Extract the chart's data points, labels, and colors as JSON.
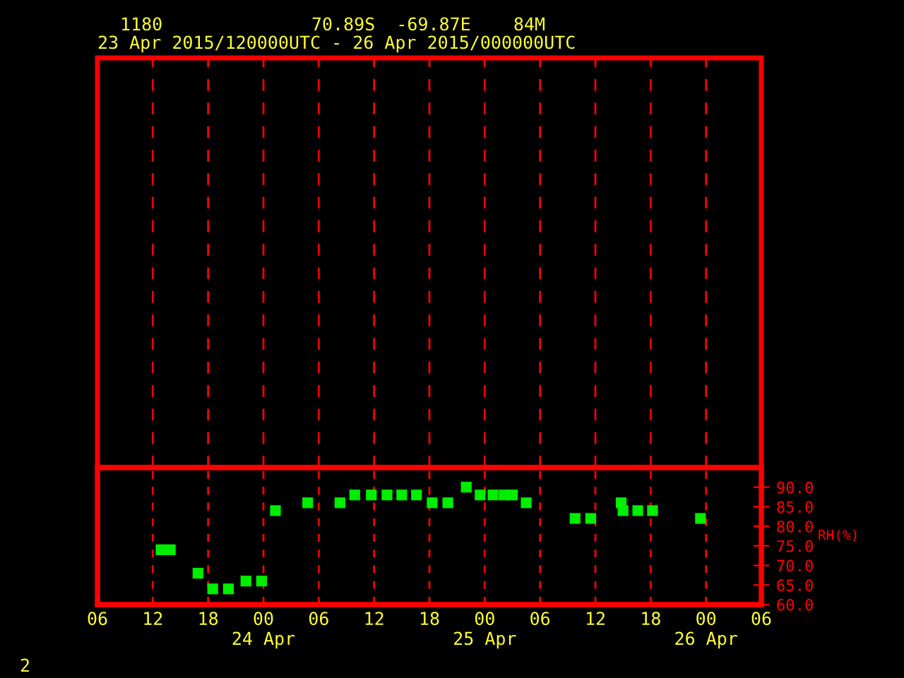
{
  "chart_data": {
    "type": "scatter",
    "title": "1180              70.89S  -69.87E    84M",
    "subtitle": "23 Apr 2015/120000UTC - 26 Apr 2015/000000UTC",
    "y2label": "RH(%)",
    "annotations": [
      "2"
    ],
    "x": [
      "2015-04-23T12:54",
      "2015-04-23T13:54",
      "2015-04-23T16:54",
      "2015-04-23T18:30",
      "2015-04-23T20:12",
      "2015-04-23T22:06",
      "2015-04-23T23:48",
      "2015-04-24T01:18",
      "2015-04-24T04:48",
      "2015-04-24T08:18",
      "2015-04-24T09:54",
      "2015-04-24T11:42",
      "2015-04-24T13:24",
      "2015-04-24T15:00",
      "2015-04-24T16:36",
      "2015-04-24T18:18",
      "2015-04-24T20:00",
      "2015-04-24T22:00",
      "2015-04-24T23:30",
      "2015-04-25T00:54",
      "2015-04-25T02:06",
      "2015-04-25T03:00",
      "2015-04-25T04:30",
      "2015-04-25T09:48",
      "2015-04-25T11:30",
      "2015-04-25T14:48",
      "2015-04-25T15:00",
      "2015-04-25T16:36",
      "2015-04-25T18:12",
      "2015-04-25T23:24"
    ],
    "series": [
      {
        "color": "#00ee00",
        "axis": "y2",
        "values": [
          74,
          74,
          68,
          64,
          64,
          66,
          66,
          84,
          86,
          86,
          88,
          88,
          88,
          88,
          88,
          86,
          86,
          90,
          88,
          88,
          88,
          88,
          86,
          82,
          82,
          86,
          84,
          84,
          84,
          82
        ]
      }
    ],
    "xlim": [
      "2015-04-23T06:00",
      "2015-04-26T06:00"
    ],
    "xticks": [
      {
        "value": "2015-04-23T06:00",
        "label": "06"
      },
      {
        "value": "2015-04-23T12:00",
        "label": "12"
      },
      {
        "value": "2015-04-23T18:00",
        "label": "18"
      },
      {
        "value": "2015-04-24T00:00",
        "label": "00\n24 Apr"
      },
      {
        "value": "2015-04-24T06:00",
        "label": "06"
      },
      {
        "value": "2015-04-24T12:00",
        "label": "12"
      },
      {
        "value": "2015-04-24T18:00",
        "label": "18"
      },
      {
        "value": "2015-04-25T00:00",
        "label": "00\n25 Apr"
      },
      {
        "value": "2015-04-25T06:00",
        "label": "06"
      },
      {
        "value": "2015-04-25T12:00",
        "label": "12"
      },
      {
        "value": "2015-04-25T18:00",
        "label": "18"
      },
      {
        "value": "2015-04-26T00:00",
        "label": "00\n26 Apr"
      },
      {
        "value": "2015-04-26T06:00",
        "label": "06"
      }
    ],
    "y2lim": [
      60,
      95
    ],
    "y2ticks": [
      {
        "value": 60,
        "label": "60.0"
      },
      {
        "value": 65,
        "label": "65.0"
      },
      {
        "value": 70,
        "label": "70.0"
      },
      {
        "value": 75,
        "label": "75.0"
      },
      {
        "value": 80,
        "label": "80.0"
      },
      {
        "value": 85,
        "label": "85.0"
      },
      {
        "value": 90,
        "label": "90.0"
      }
    ],
    "grid": "x",
    "marker": "square",
    "legend": false
  }
}
